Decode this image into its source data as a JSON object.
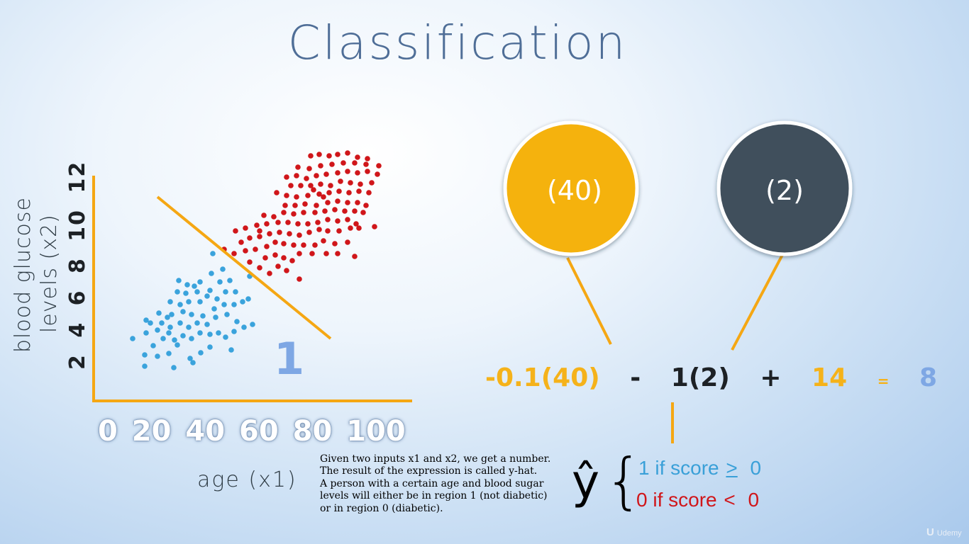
{
  "title": "Classification",
  "chart_data": {
    "type": "scatter",
    "ylabel": [
      "blood glucose",
      "levels (x2)"
    ],
    "xlabel": "age (x1)",
    "x_ticks": [
      "0",
      "20",
      "40",
      "60",
      "80",
      "100"
    ],
    "y_ticks": [
      "2",
      "4",
      "6",
      "8",
      "10",
      "12"
    ],
    "region_label": "1",
    "colors": {
      "blue": "#3aa3dc",
      "red": "#d0161a",
      "line": "#f5a713",
      "axis": "#f5a713"
    },
    "series": [
      {
        "color": "blue",
        "points": [
          [
            204,
            517
          ],
          [
            245,
            519
          ],
          [
            272,
            512
          ],
          [
            268,
            506
          ],
          [
            238,
            499
          ],
          [
            222,
            503
          ],
          [
            204,
            501
          ],
          [
            283,
            498
          ],
          [
            296,
            490
          ],
          [
            326,
            494
          ],
          [
            250,
            487
          ],
          [
            230,
            478
          ],
          [
            216,
            488
          ],
          [
            187,
            478
          ],
          [
            206,
            470
          ],
          [
            222,
            466
          ],
          [
            238,
            470
          ],
          [
            246,
            480
          ],
          [
            258,
            474
          ],
          [
            270,
            478
          ],
          [
            282,
            470
          ],
          [
            296,
            472
          ],
          [
            308,
            470
          ],
          [
            318,
            476
          ],
          [
            330,
            468
          ],
          [
            344,
            462
          ],
          [
            356,
            458
          ],
          [
            212,
            456
          ],
          [
            228,
            456
          ],
          [
            240,
            462
          ],
          [
            254,
            456
          ],
          [
            266,
            462
          ],
          [
            278,
            456
          ],
          [
            292,
            458
          ],
          [
            304,
            448
          ],
          [
            320,
            444
          ],
          [
            334,
            454
          ],
          [
            206,
            452
          ],
          [
            224,
            442
          ],
          [
            242,
            444
          ],
          [
            258,
            440
          ],
          [
            270,
            444
          ],
          [
            286,
            446
          ],
          [
            302,
            436
          ],
          [
            316,
            430
          ],
          [
            330,
            430
          ],
          [
            342,
            426
          ],
          [
            350,
            422
          ],
          [
            240,
            426
          ],
          [
            254,
            430
          ],
          [
            266,
            426
          ],
          [
            282,
            426
          ],
          [
            292,
            418
          ],
          [
            306,
            422
          ],
          [
            318,
            412
          ],
          [
            332,
            412
          ],
          [
            250,
            412
          ],
          [
            262,
            414
          ],
          [
            278,
            412
          ],
          [
            296,
            410
          ],
          [
            310,
            398
          ],
          [
            324,
            396
          ],
          [
            252,
            396
          ],
          [
            264,
            402
          ],
          [
            282,
            398
          ],
          [
            298,
            386
          ],
          [
            314,
            380
          ],
          [
            352,
            390
          ],
          [
            300,
            358
          ],
          [
            274,
            404
          ],
          [
            236,
            448
          ]
        ]
      },
      {
        "color": "red",
        "points": [
          [
            422,
            394
          ],
          [
            404,
            382
          ],
          [
            380,
            386
          ],
          [
            392,
            376
          ],
          [
            366,
            378
          ],
          [
            374,
            364
          ],
          [
            388,
            360
          ],
          [
            400,
            364
          ],
          [
            412,
            368
          ],
          [
            422,
            358
          ],
          [
            440,
            358
          ],
          [
            460,
            358
          ],
          [
            476,
            358
          ],
          [
            500,
            362
          ],
          [
            352,
            370
          ],
          [
            330,
            358
          ],
          [
            346,
            354
          ],
          [
            360,
            352
          ],
          [
            376,
            348
          ],
          [
            388,
            342
          ],
          [
            400,
            344
          ],
          [
            414,
            346
          ],
          [
            428,
            346
          ],
          [
            444,
            346
          ],
          [
            456,
            340
          ],
          [
            472,
            344
          ],
          [
            490,
            342
          ],
          [
            340,
            342
          ],
          [
            352,
            336
          ],
          [
            366,
            334
          ],
          [
            380,
            330
          ],
          [
            394,
            328
          ],
          [
            408,
            330
          ],
          [
            422,
            332
          ],
          [
            436,
            328
          ],
          [
            450,
            324
          ],
          [
            462,
            326
          ],
          [
            478,
            326
          ],
          [
            494,
            322
          ],
          [
            506,
            322
          ],
          [
            528,
            320
          ],
          [
            332,
            326
          ],
          [
            346,
            322
          ],
          [
            362,
            318
          ],
          [
            376,
            316
          ],
          [
            392,
            314
          ],
          [
            406,
            314
          ],
          [
            420,
            316
          ],
          [
            434,
            316
          ],
          [
            448,
            314
          ],
          [
            462,
            310
          ],
          [
            476,
            312
          ],
          [
            490,
            310
          ],
          [
            502,
            316
          ],
          [
            372,
            304
          ],
          [
            386,
            306
          ],
          [
            400,
            300
          ],
          [
            414,
            302
          ],
          [
            428,
            300
          ],
          [
            444,
            300
          ],
          [
            458,
            298
          ],
          [
            472,
            296
          ],
          [
            486,
            298
          ],
          [
            500,
            298
          ],
          [
            512,
            300
          ],
          [
            402,
            290
          ],
          [
            416,
            290
          ],
          [
            430,
            288
          ],
          [
            446,
            290
          ],
          [
            462,
            286
          ],
          [
            476,
            284
          ],
          [
            490,
            286
          ],
          [
            504,
            286
          ],
          [
            516,
            290
          ],
          [
            390,
            272
          ],
          [
            404,
            276
          ],
          [
            418,
            278
          ],
          [
            434,
            276
          ],
          [
            450,
            274
          ],
          [
            464,
            272
          ],
          [
            478,
            270
          ],
          [
            492,
            272
          ],
          [
            506,
            270
          ],
          [
            520,
            272
          ],
          [
            410,
            262
          ],
          [
            424,
            262
          ],
          [
            438,
            262
          ],
          [
            452,
            260
          ],
          [
            466,
            262
          ],
          [
            480,
            256
          ],
          [
            494,
            258
          ],
          [
            508,
            260
          ],
          [
            524,
            258
          ],
          [
            404,
            250
          ],
          [
            418,
            248
          ],
          [
            432,
            252
          ],
          [
            446,
            248
          ],
          [
            460,
            246
          ],
          [
            476,
            244
          ],
          [
            490,
            242
          ],
          [
            504,
            244
          ],
          [
            518,
            242
          ],
          [
            532,
            246
          ],
          [
            420,
            236
          ],
          [
            436,
            238
          ],
          [
            452,
            234
          ],
          [
            468,
            232
          ],
          [
            484,
            230
          ],
          [
            500,
            230
          ],
          [
            516,
            232
          ],
          [
            534,
            234
          ],
          [
            438,
            220
          ],
          [
            450,
            218
          ],
          [
            464,
            220
          ],
          [
            476,
            218
          ],
          [
            490,
            216
          ],
          [
            504,
            222
          ],
          [
            518,
            224
          ],
          [
            442,
            268
          ],
          [
            456,
            278
          ],
          [
            366,
            326
          ],
          [
            316,
            352
          ]
        ]
      }
    ],
    "boundary_line": [
      [
        222,
        278
      ],
      [
        466,
        478
      ]
    ]
  },
  "circles": [
    {
      "label": "(40)",
      "fill": "#f5b207"
    },
    {
      "label": "(2)",
      "fill": "#414f5c"
    }
  ],
  "equation": {
    "term1": "-0.1(40)",
    "op1": "-",
    "term2": "1(2)",
    "op2": "+",
    "term3": "14",
    "equals": "=",
    "result": "8"
  },
  "caption": [
    "Given two inputs x1 and x2, we get a number.",
    "The result of the expression is called y-hat.",
    "A person with a certain age and blood sugar",
    "levels will either be in region 1 (not diabetic)",
    "or in region 0 (diabetic)."
  ],
  "yhat": "ŷ",
  "brace": "{",
  "rules": {
    "one": {
      "prefix": "1 if score",
      "op": ">",
      "value": "0"
    },
    "zero": {
      "prefix": "0 if score",
      "op": "<",
      "value": "0"
    }
  },
  "watermark": "Udemy",
  "watermark_logo": "U"
}
